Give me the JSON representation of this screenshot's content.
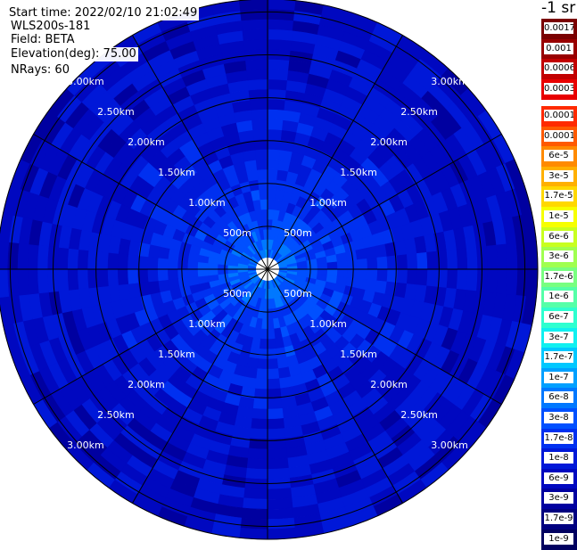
{
  "info": {
    "start_time": "Start time: 2022/02/10 21:02:49",
    "device": "WLS200s-181",
    "field": "Field: BETA",
    "elevation": "Elevation(deg): 75.00",
    "nrays": "NRays: 60"
  },
  "colorbar": {
    "unit": "-1 sr",
    "high_labels": [
      "0.0017",
      "0.001",
      "0.0006",
      "0.0003"
    ],
    "high_colors": [
      "#7a0000",
      "#990000",
      "#c20000",
      "#e80000"
    ],
    "labels": [
      "0.00017",
      "0.0001",
      "6e-5",
      "3e-5",
      "1.7e-5",
      "1e-5",
      "6e-6",
      "3e-6",
      "1.7e-6",
      "1e-6",
      "6e-7",
      "3e-7",
      "1.7e-7",
      "1e-7",
      "6e-8",
      "3e-8",
      "1.7e-8",
      "1e-8",
      "6e-9",
      "3e-9",
      "1.7e-9",
      "1e-9"
    ],
    "colors": [
      "#ff2a00",
      "#ff5a00",
      "#ff8a00",
      "#ffb000",
      "#ffd800",
      "#f6ff00",
      "#c8ff20",
      "#a0ff50",
      "#78ff80",
      "#55ffa8",
      "#2effd0",
      "#10f0f0",
      "#00c8ff",
      "#00a0ff",
      "#0078ff",
      "#0050ff",
      "#0030f0",
      "#0018d8",
      "#0008c0",
      "#0000a0",
      "#000080",
      "#000060"
    ]
  },
  "chart_data": {
    "type": "heatmap",
    "projection": "polar (PPI)",
    "field": "BETA",
    "elevation_deg": 75.0,
    "n_rays": 60,
    "ring_labels": [
      "500m",
      "1.00km",
      "1.50km",
      "2.00km",
      "2.50km",
      "3.00km"
    ],
    "ring_ranges_m": [
      500,
      1000,
      1500,
      2000,
      2500,
      3000
    ],
    "max_range_m": 3150,
    "spokes_deg": [
      0,
      30,
      60,
      90,
      120,
      150,
      180,
      210,
      240,
      270,
      300,
      330
    ],
    "n_range_gates": 27,
    "color_scale": "log",
    "ring_means_beta_sr-1": [
      1e-07,
      6e-08,
      6e-08,
      4e-08,
      3e-08,
      3e-08,
      2.5e-08,
      2e-08,
      2e-08,
      1.7e-08,
      1.6e-08,
      1.5e-08,
      1.4e-08,
      1.3e-08,
      1.2e-08,
      1.1e-08,
      1.05e-08,
      1e-08,
      1e-08,
      9.5e-09,
      9e-09,
      9e-09,
      8.5e-09,
      8.5e-09,
      8e-09,
      8e-09,
      7.5e-09
    ]
  }
}
